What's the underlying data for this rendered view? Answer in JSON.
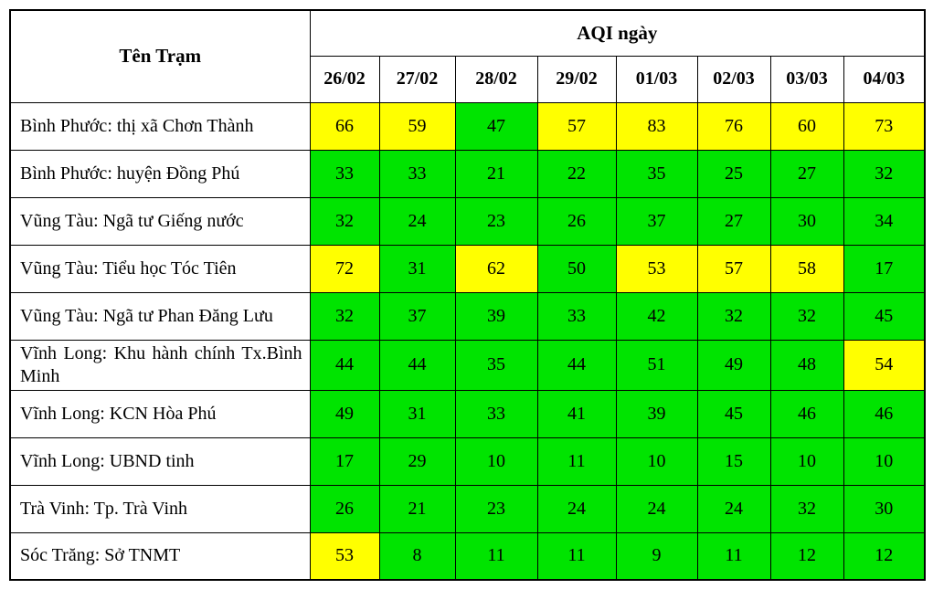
{
  "colors": {
    "green": "#00e400",
    "yellow": "#ffff00",
    "border": "#000000",
    "text": "#000000"
  },
  "chart_data": {
    "type": "table",
    "station_header": "Tên Trạm",
    "aqi_header": "AQI ngày",
    "dates": [
      "26/02",
      "27/02",
      "28/02",
      "29/02",
      "01/03",
      "02/03",
      "03/03",
      "04/03"
    ],
    "rows": [
      {
        "station": "Bình Phước: thị xã Chơn Thành",
        "values": [
          66,
          59,
          47,
          57,
          83,
          76,
          60,
          73
        ],
        "cell_colors": [
          "yellow",
          "yellow",
          "green",
          "yellow",
          "yellow",
          "yellow",
          "yellow",
          "yellow"
        ]
      },
      {
        "station": "Bình Phước: huyện Đồng Phú",
        "values": [
          33,
          33,
          21,
          22,
          35,
          25,
          27,
          32
        ],
        "cell_colors": [
          "green",
          "green",
          "green",
          "green",
          "green",
          "green",
          "green",
          "green"
        ]
      },
      {
        "station": "Vũng Tàu: Ngã tư Giếng nước",
        "values": [
          32,
          24,
          23,
          26,
          37,
          27,
          30,
          34
        ],
        "cell_colors": [
          "green",
          "green",
          "green",
          "green",
          "green",
          "green",
          "green",
          "green"
        ]
      },
      {
        "station": "Vũng Tàu: Tiểu học Tóc Tiên",
        "values": [
          72,
          31,
          62,
          50,
          53,
          57,
          58,
          17
        ],
        "cell_colors": [
          "yellow",
          "green",
          "yellow",
          "green",
          "yellow",
          "yellow",
          "yellow",
          "green"
        ]
      },
      {
        "station": "Vũng Tàu: Ngã tư Phan Đăng Lưu",
        "values": [
          32,
          37,
          39,
          33,
          42,
          32,
          32,
          45
        ],
        "cell_colors": [
          "green",
          "green",
          "green",
          "green",
          "green",
          "green",
          "green",
          "green"
        ]
      },
      {
        "station": "Vĩnh Long: Khu hành chính Tx.Bình Minh",
        "values": [
          44,
          44,
          35,
          44,
          51,
          49,
          48,
          54
        ],
        "cell_colors": [
          "green",
          "green",
          "green",
          "green",
          "green",
          "green",
          "green",
          "yellow"
        ]
      },
      {
        "station": "Vĩnh Long: KCN Hòa Phú",
        "values": [
          49,
          31,
          33,
          41,
          39,
          45,
          46,
          46
        ],
        "cell_colors": [
          "green",
          "green",
          "green",
          "green",
          "green",
          "green",
          "green",
          "green"
        ]
      },
      {
        "station": "Vĩnh Long: UBND tinh",
        "values": [
          17,
          29,
          10,
          11,
          10,
          15,
          10,
          10
        ],
        "cell_colors": [
          "green",
          "green",
          "green",
          "green",
          "green",
          "green",
          "green",
          "green"
        ]
      },
      {
        "station": "Trà Vinh: Tp. Trà Vinh",
        "values": [
          26,
          21,
          23,
          24,
          24,
          24,
          32,
          30
        ],
        "cell_colors": [
          "green",
          "green",
          "green",
          "green",
          "green",
          "green",
          "green",
          "green"
        ]
      },
      {
        "station": "Sóc Trăng: Sở TNMT",
        "values": [
          53,
          8,
          11,
          11,
          9,
          11,
          12,
          12
        ],
        "cell_colors": [
          "yellow",
          "green",
          "green",
          "green",
          "green",
          "green",
          "green",
          "green"
        ]
      }
    ]
  }
}
